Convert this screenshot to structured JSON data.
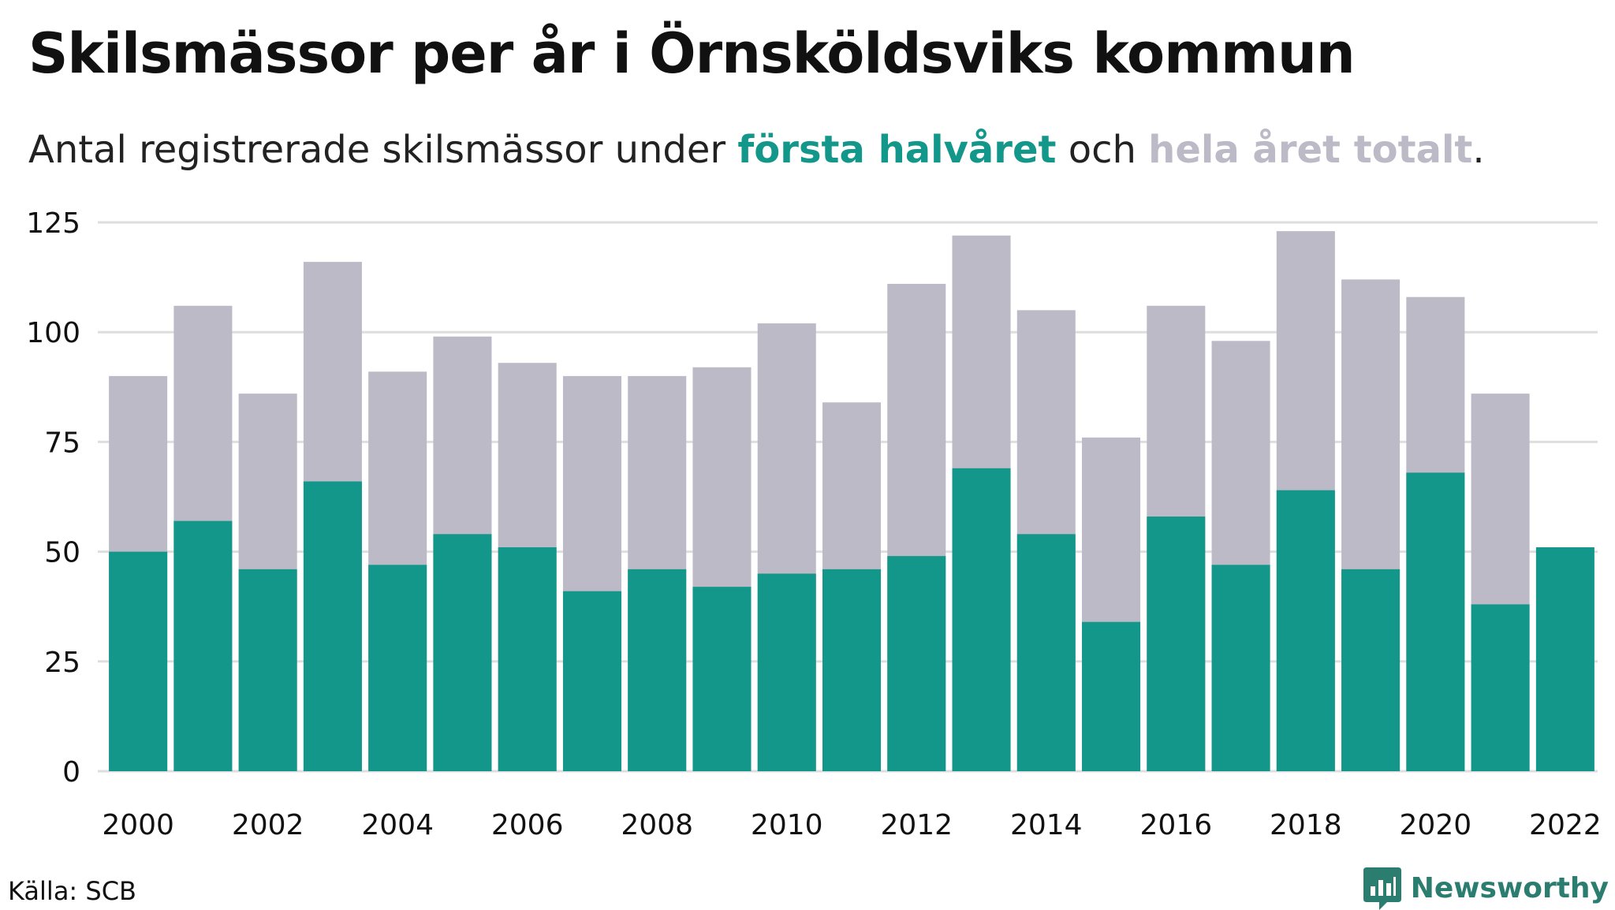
{
  "header": {
    "title": "Skilsmässor per år i Örnsköldsviks kommun",
    "subtitle_prefix": "Antal registrerade skilsmässor under ",
    "subtitle_first_half": "första halvåret",
    "subtitle_middle": " och ",
    "subtitle_full_year": "hela året totalt",
    "subtitle_suffix": "."
  },
  "footer": {
    "source": "Källa: SCB",
    "brand": "Newsworthy"
  },
  "colors": {
    "first_half": "#13978a",
    "full_year": "#bcbac7",
    "grid": "#dedede",
    "brand": "#2a7d6f"
  },
  "chart_data": {
    "type": "bar",
    "categories": [
      "2000",
      "2001",
      "2002",
      "2003",
      "2004",
      "2005",
      "2006",
      "2007",
      "2008",
      "2009",
      "2010",
      "2011",
      "2012",
      "2013",
      "2014",
      "2015",
      "2016",
      "2017",
      "2018",
      "2019",
      "2020",
      "2021",
      "2022"
    ],
    "x_tick_labels": [
      "2000",
      "2002",
      "2004",
      "2006",
      "2008",
      "2010",
      "2012",
      "2014",
      "2016",
      "2018",
      "2020",
      "2022"
    ],
    "series": [
      {
        "name": "hela året totalt",
        "values": [
          90,
          106,
          86,
          116,
          91,
          99,
          93,
          90,
          90,
          92,
          102,
          84,
          111,
          122,
          105,
          76,
          106,
          98,
          123,
          112,
          108,
          86,
          null
        ]
      },
      {
        "name": "första halvåret",
        "values": [
          50,
          57,
          46,
          66,
          47,
          54,
          51,
          41,
          46,
          42,
          45,
          46,
          49,
          69,
          54,
          34,
          58,
          47,
          64,
          46,
          68,
          38,
          51
        ]
      }
    ],
    "y_ticks": [
      0,
      25,
      50,
      75,
      100,
      125
    ],
    "ylim": [
      0,
      125
    ],
    "grid": true,
    "legend": "in subtitle"
  }
}
